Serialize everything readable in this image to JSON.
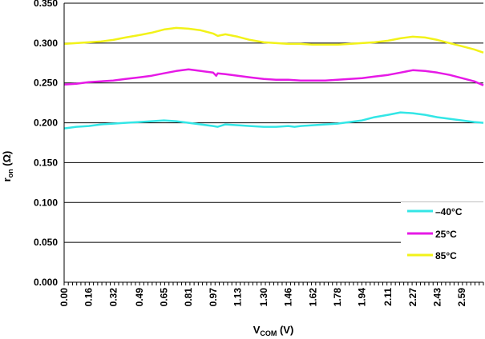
{
  "chart_data": {
    "type": "line",
    "xlabel": {
      "main": "V",
      "sub": "COM",
      "unit": " (V)"
    },
    "ylabel": {
      "main": "r",
      "sub": "on",
      "unit": " (Ω)"
    },
    "xlim": [
      0,
      2.73
    ],
    "ylim": [
      0,
      0.35
    ],
    "x_ticks": [
      "0.00",
      "0.16",
      "0.32",
      "0.49",
      "0.65",
      "0.81",
      "0.97",
      "1.13",
      "1.30",
      "1.46",
      "1.62",
      "1.78",
      "1.94",
      "2.11",
      "2.27",
      "2.43",
      "2.59"
    ],
    "y_ticks": [
      "0.000",
      "0.050",
      "0.100",
      "0.150",
      "0.200",
      "0.250",
      "0.300",
      "0.350"
    ],
    "grid": {
      "horizontal": true,
      "vertical": false
    },
    "legend_position": "bottom-right",
    "series": [
      {
        "name": "–40°C",
        "color": "#33e6e6",
        "x": [
          0.0,
          0.08,
          0.16,
          0.24,
          0.32,
          0.4,
          0.49,
          0.57,
          0.65,
          0.73,
          0.81,
          0.89,
          0.97,
          1.0,
          1.05,
          1.13,
          1.21,
          1.3,
          1.38,
          1.46,
          1.5,
          1.54,
          1.62,
          1.7,
          1.78,
          1.86,
          1.94,
          2.02,
          2.11,
          2.19,
          2.27,
          2.35,
          2.43,
          2.51,
          2.59,
          2.67,
          2.73
        ],
        "values": [
          0.193,
          0.195,
          0.196,
          0.198,
          0.199,
          0.2,
          0.201,
          0.202,
          0.203,
          0.202,
          0.2,
          0.198,
          0.196,
          0.195,
          0.198,
          0.197,
          0.196,
          0.195,
          0.195,
          0.196,
          0.195,
          0.196,
          0.197,
          0.198,
          0.199,
          0.201,
          0.203,
          0.207,
          0.21,
          0.213,
          0.212,
          0.21,
          0.207,
          0.205,
          0.203,
          0.201,
          0.2
        ]
      },
      {
        "name": "25°C",
        "color": "#e619e6",
        "x": [
          0.0,
          0.08,
          0.16,
          0.24,
          0.32,
          0.4,
          0.49,
          0.57,
          0.65,
          0.73,
          0.81,
          0.89,
          0.97,
          0.99,
          1.0,
          1.05,
          1.13,
          1.21,
          1.3,
          1.38,
          1.46,
          1.54,
          1.62,
          1.7,
          1.78,
          1.86,
          1.94,
          2.02,
          2.11,
          2.19,
          2.27,
          2.35,
          2.43,
          2.51,
          2.59,
          2.67,
          2.73
        ],
        "values": [
          0.248,
          0.249,
          0.251,
          0.252,
          0.253,
          0.255,
          0.257,
          0.259,
          0.262,
          0.265,
          0.267,
          0.265,
          0.263,
          0.259,
          0.262,
          0.261,
          0.259,
          0.257,
          0.255,
          0.254,
          0.254,
          0.253,
          0.253,
          0.253,
          0.254,
          0.255,
          0.256,
          0.258,
          0.26,
          0.263,
          0.266,
          0.265,
          0.263,
          0.26,
          0.256,
          0.252,
          0.247
        ]
      },
      {
        "name": "85°C",
        "color": "#f2f219",
        "x": [
          0.0,
          0.08,
          0.16,
          0.24,
          0.32,
          0.4,
          0.49,
          0.57,
          0.65,
          0.73,
          0.81,
          0.89,
          0.97,
          1.0,
          1.05,
          1.13,
          1.21,
          1.3,
          1.38,
          1.46,
          1.54,
          1.62,
          1.7,
          1.78,
          1.86,
          1.94,
          2.02,
          2.11,
          2.19,
          2.27,
          2.35,
          2.43,
          2.51,
          2.59,
          2.67,
          2.73
        ],
        "values": [
          0.299,
          0.3,
          0.301,
          0.302,
          0.304,
          0.307,
          0.31,
          0.313,
          0.317,
          0.319,
          0.318,
          0.316,
          0.312,
          0.309,
          0.311,
          0.308,
          0.304,
          0.301,
          0.3,
          0.299,
          0.299,
          0.298,
          0.298,
          0.298,
          0.299,
          0.3,
          0.301,
          0.303,
          0.306,
          0.308,
          0.307,
          0.304,
          0.3,
          0.296,
          0.292,
          0.288
        ]
      }
    ]
  }
}
